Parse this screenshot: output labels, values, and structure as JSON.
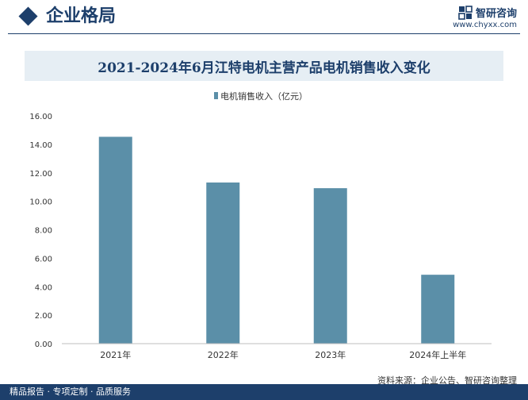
{
  "header": {
    "section_title": "企业格局",
    "brand_name": "智研咨询",
    "brand_url": "www.chyxx.com",
    "accent_color": "#1d3f6b"
  },
  "chart_data": {
    "type": "bar",
    "title": "2021-2024年6月江特电机主营产品电机销售收入变化",
    "categories": [
      "2021年",
      "2022年",
      "2023年",
      "2024年上半年"
    ],
    "series": [
      {
        "name": "电机销售收入（亿元）",
        "values": [
          14.53,
          11.32,
          10.92,
          4.84
        ],
        "color": "#5b8fa8"
      }
    ],
    "y_ticks": [
      "0.00",
      "2.00",
      "4.00",
      "6.00",
      "8.00",
      "10.00",
      "12.00",
      "14.00",
      "16.00"
    ],
    "ylim": [
      0,
      16
    ],
    "grid": false,
    "legend_position": "top-center"
  },
  "footer": {
    "left_text": "精品报告 · 专项定制 · 品质服务",
    "source_text": "资料来源：企业公告、智研咨询整理"
  }
}
